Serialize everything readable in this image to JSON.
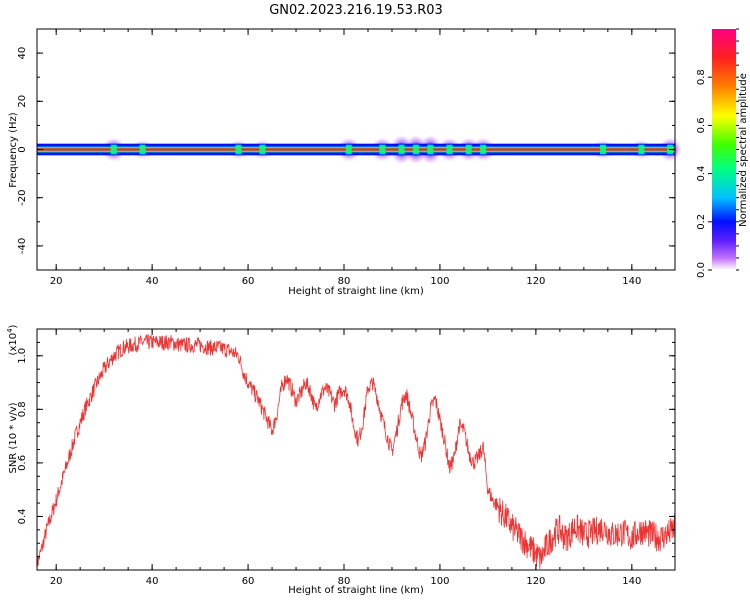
{
  "title": "GN02.2023.216.19.53.R03",
  "chart_data": [
    {
      "type": "heatmap",
      "xlabel": "Height of straight line (km)",
      "ylabel": "Frequency (Hz)",
      "xlim": [
        16,
        149
      ],
      "ylim": [
        -50,
        50
      ],
      "x_ticks": [
        "20",
        "40",
        "60",
        "80",
        "100",
        "120",
        "140"
      ],
      "y_ticks": [
        "40",
        "20",
        "0",
        "-20",
        "-40"
      ],
      "x_tick_values": [
        20,
        40,
        60,
        80,
        100,
        120,
        140
      ],
      "y_tick_values": [
        40,
        20,
        0,
        -20,
        -40
      ],
      "grid": false,
      "description": "Signal concentrated at 0 Hz across all heights; broader spectral spread between about 85 and 110 km",
      "colorbar": {
        "label": "Normalized spectral amplitude",
        "range": [
          0.0,
          1.0
        ],
        "ticks": [
          "0.0",
          "0.2",
          "0.4",
          "0.6",
          "0.8"
        ],
        "tick_values": [
          0.0,
          0.2,
          0.4,
          0.6,
          0.8
        ],
        "colors": [
          "#ffffff",
          "#c070ff",
          "#6020ff",
          "#0010ff",
          "#00c0ff",
          "#00ff80",
          "#40ff00",
          "#ffff00",
          "#ff8000",
          "#ff2020",
          "#ff0080"
        ]
      },
      "band": {
        "center_hz": 0,
        "halfwidth_hz": 2
      },
      "spread": [
        {
          "x": 32,
          "width_hz": 4,
          "level": 0.4
        },
        {
          "x": 38,
          "width_hz": 3,
          "level": 0.35
        },
        {
          "x": 58,
          "width_hz": 3,
          "level": 0.35
        },
        {
          "x": 63,
          "width_hz": 3,
          "level": 0.35
        },
        {
          "x": 81,
          "width_hz": 4,
          "level": 0.45
        },
        {
          "x": 88,
          "width_hz": 4,
          "level": 0.4
        },
        {
          "x": 92,
          "width_hz": 5,
          "level": 0.55
        },
        {
          "x": 95,
          "width_hz": 5,
          "level": 0.55
        },
        {
          "x": 98,
          "width_hz": 5,
          "level": 0.5
        },
        {
          "x": 102,
          "width_hz": 4,
          "level": 0.45
        },
        {
          "x": 106,
          "width_hz": 4,
          "level": 0.5
        },
        {
          "x": 109,
          "width_hz": 4,
          "level": 0.45
        },
        {
          "x": 134,
          "width_hz": 3,
          "level": 0.35
        },
        {
          "x": 142,
          "width_hz": 3,
          "level": 0.35
        },
        {
          "x": 148,
          "width_hz": 4,
          "level": 0.4
        }
      ]
    },
    {
      "type": "line",
      "xlabel": "Height of straight line (km)",
      "ylabel": "SNR (10 * v/v)",
      "y_multiplier": "(x10",
      "y_multiplier_exp": "4",
      "y_multiplier_close": ")",
      "xlim": [
        16,
        149
      ],
      "ylim": [
        0.2,
        1.1
      ],
      "x_ticks": [
        "20",
        "40",
        "60",
        "80",
        "100",
        "120",
        "140"
      ],
      "y_ticks": [
        "1.0",
        "0.8",
        "0.6",
        "0.4"
      ],
      "x_tick_values": [
        20,
        40,
        60,
        80,
        100,
        120,
        140
      ],
      "y_tick_values": [
        1.0,
        0.8,
        0.6,
        0.4
      ],
      "grid": false,
      "series": [
        {
          "color": "#ee3333",
          "x": [
            16,
            17,
            18,
            20,
            22,
            24,
            26,
            28,
            30,
            32,
            34,
            36,
            38,
            40,
            42,
            44,
            46,
            48,
            50,
            52,
            54,
            56,
            58,
            59,
            60,
            61,
            62,
            63,
            64,
            65,
            66,
            67,
            68,
            69,
            70,
            71,
            72,
            73,
            74,
            75,
            76,
            77,
            78,
            79,
            80,
            81,
            82,
            83,
            84,
            85,
            86,
            87,
            88,
            89,
            90,
            91,
            92,
            93,
            94,
            95,
            96,
            97,
            98,
            99,
            100,
            101,
            102,
            103,
            104,
            105,
            106,
            107,
            108,
            109,
            110,
            111,
            112,
            113,
            114,
            115,
            116,
            117,
            118,
            119,
            120,
            121,
            122,
            123,
            124,
            125,
            126,
            127,
            128,
            129,
            130,
            132,
            134,
            136,
            138,
            140,
            142,
            144,
            146,
            148,
            149
          ],
          "y": [
            0.22,
            0.28,
            0.35,
            0.46,
            0.58,
            0.7,
            0.8,
            0.88,
            0.95,
            1.0,
            1.03,
            1.04,
            1.05,
            1.05,
            1.05,
            1.05,
            1.04,
            1.04,
            1.04,
            1.03,
            1.03,
            1.02,
            1.0,
            0.94,
            0.9,
            0.87,
            0.84,
            0.8,
            0.76,
            0.72,
            0.78,
            0.88,
            0.92,
            0.88,
            0.83,
            0.86,
            0.9,
            0.87,
            0.8,
            0.85,
            0.88,
            0.86,
            0.82,
            0.86,
            0.88,
            0.84,
            0.74,
            0.68,
            0.76,
            0.88,
            0.9,
            0.84,
            0.76,
            0.7,
            0.64,
            0.72,
            0.82,
            0.86,
            0.78,
            0.7,
            0.62,
            0.68,
            0.8,
            0.84,
            0.76,
            0.68,
            0.58,
            0.62,
            0.74,
            0.72,
            0.64,
            0.6,
            0.62,
            0.66,
            0.5,
            0.46,
            0.44,
            0.41,
            0.39,
            0.36,
            0.34,
            0.32,
            0.3,
            0.28,
            0.26,
            0.24,
            0.28,
            0.31,
            0.34,
            0.35,
            0.32,
            0.33,
            0.36,
            0.35,
            0.33,
            0.34,
            0.36,
            0.33,
            0.34,
            0.32,
            0.35,
            0.33,
            0.32,
            0.34,
            0.36
          ]
        }
      ]
    }
  ]
}
